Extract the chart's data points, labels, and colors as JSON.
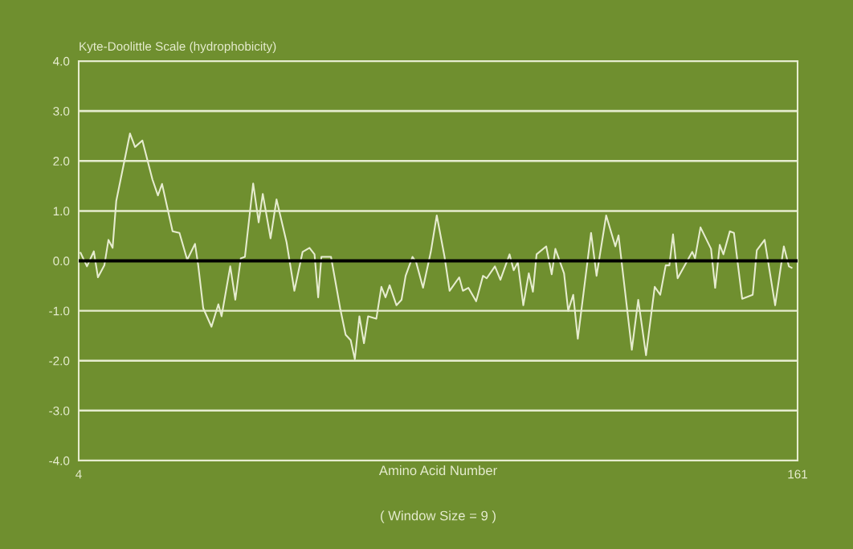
{
  "chart_data": {
    "type": "line",
    "ylabel": "Kyte-Doolittle Scale (hydrophobicity)",
    "xlabel": "Amino Acid Number",
    "annotations": [
      "( Window Size = 9 )"
    ],
    "xlim": [
      4,
      161
    ],
    "xticks": [
      4,
      161
    ],
    "ylim": [
      -4,
      4
    ],
    "yticks": [
      {
        "value": -4,
        "label": "-4.0"
      },
      {
        "value": -3,
        "label": "-3.0"
      },
      {
        "value": -2,
        "label": "-2.0"
      },
      {
        "value": -1,
        "label": "-1.0"
      },
      {
        "value": 0,
        "label": "0.0"
      },
      {
        "value": 1,
        "label": "1.0"
      },
      {
        "value": 2,
        "label": "2.0"
      },
      {
        "value": 3,
        "label": "3.0"
      },
      {
        "value": 4,
        "label": "4.0"
      }
    ],
    "grid": "y",
    "marker": "none",
    "line_style": "solid",
    "ref_lines": [
      {
        "axis": "y",
        "value": 0,
        "label": null,
        "color": "#000000"
      }
    ],
    "series": [
      {
        "color": "#e6eccf",
        "x": [
          4.4,
          5.8,
          7.3,
          8.2,
          9.6,
          10.5,
          11.4,
          12.2,
          15.2,
          16.3,
          17.9,
          20.1,
          21.3,
          22.2,
          24.5,
          26.0,
          27.7,
          29.4,
          30.1,
          31.2,
          33.0,
          34.5,
          35.2,
          37.1,
          38.2,
          39.4,
          40.3,
          42.1,
          43.3,
          44.2,
          45.9,
          47.2,
          49.4,
          51.1,
          52.9,
          54.4,
          55.5,
          56.3,
          57.0,
          59.1,
          61.1,
          62.3,
          63.4,
          64.3,
          65.3,
          66.3,
          67.2,
          69.0,
          70.1,
          71.0,
          71.9,
          73.4,
          74.5,
          75.4,
          76.9,
          77.7,
          79.2,
          80.9,
          82.2,
          83.9,
          85.0,
          87.1,
          87.9,
          89.1,
          90.8,
          92.3,
          93.1,
          94.9,
          96.1,
          98.1,
          99.0,
          99.9,
          101.1,
          102.3,
          103.2,
          104.0,
          106.1,
          107.3,
          108.1,
          110.0,
          110.9,
          112.0,
          113.0,
          115.9,
          117.1,
          119.2,
          121.2,
          121.9,
          124.8,
          126.2,
          127.9,
          129.8,
          131.0,
          132.2,
          133.0,
          133.8,
          134.8,
          138.0,
          138.6,
          139.8,
          142.1,
          143.0,
          144.0,
          144.8,
          146.2,
          147.1,
          148.9,
          151.2,
          152.1,
          153.8,
          156.1,
          158.0,
          159.1,
          159.7
        ],
        "values": [
          0.16,
          -0.11,
          0.19,
          -0.33,
          -0.09,
          0.42,
          0.26,
          1.2,
          2.55,
          2.28,
          2.41,
          1.63,
          1.31,
          1.54,
          0.59,
          0.56,
          0.02,
          0.34,
          -0.09,
          -0.95,
          -1.32,
          -0.87,
          -1.11,
          -0.11,
          -0.78,
          0.05,
          0.08,
          1.55,
          0.77,
          1.34,
          0.45,
          1.23,
          0.37,
          -0.6,
          0.18,
          0.26,
          0.13,
          -0.73,
          0.08,
          0.08,
          -0.95,
          -1.48,
          -1.59,
          -1.97,
          -1.11,
          -1.65,
          -1.11,
          -1.16,
          -0.52,
          -0.73,
          -0.49,
          -0.89,
          -0.78,
          -0.3,
          0.08,
          -0.03,
          -0.54,
          0.18,
          0.91,
          0.08,
          -0.6,
          -0.33,
          -0.6,
          -0.54,
          -0.81,
          -0.3,
          -0.35,
          -0.11,
          -0.38,
          0.13,
          -0.19,
          -0.03,
          -0.89,
          -0.25,
          -0.62,
          0.13,
          0.29,
          -0.27,
          0.24,
          -0.25,
          -1.0,
          -0.68,
          -1.56,
          0.56,
          -0.3,
          0.91,
          0.29,
          0.51,
          -1.78,
          -0.78,
          -1.89,
          -0.52,
          -0.68,
          -0.09,
          -0.09,
          0.53,
          -0.35,
          0.18,
          0.05,
          0.67,
          0.24,
          -0.54,
          0.32,
          0.13,
          0.59,
          0.56,
          -0.76,
          -0.68,
          0.21,
          0.42,
          -0.89,
          0.29,
          -0.11,
          -0.14
        ]
      }
    ]
  }
}
